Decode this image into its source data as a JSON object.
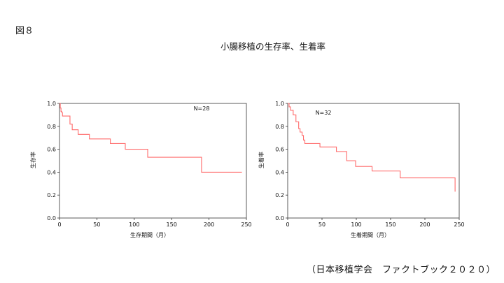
{
  "page": {
    "figure_label": "図８",
    "title": "小腸移植の生存率、生着率",
    "source": "（日本移植学会　ファクトブック２０２０）"
  },
  "chart_data": [
    {
      "type": "line",
      "step": true,
      "title": "",
      "xlabel": "生存期間（月）",
      "ylabel": "生存率",
      "annotation": "N=28",
      "xlim": [
        0,
        250
      ],
      "ylim": [
        0,
        1.0
      ],
      "xticks": [
        0,
        50,
        100,
        150,
        200,
        250
      ],
      "yticks": [
        0,
        0.2,
        0.4,
        0.6,
        0.8,
        1.0
      ],
      "ytick_labels": [
        "0.0",
        "0.2",
        "0.4",
        "0.6",
        "0.8",
        "1.0"
      ],
      "grid": false,
      "color": "#ff6b6b",
      "series": [
        {
          "x": [
            0,
            1,
            2,
            3,
            4,
            14,
            17,
            25,
            40,
            68,
            88,
            118,
            190,
            244
          ],
          "y": [
            1.0,
            0.96,
            0.93,
            0.92,
            0.89,
            0.82,
            0.77,
            0.73,
            0.69,
            0.65,
            0.6,
            0.53,
            0.4,
            0.4
          ]
        }
      ]
    },
    {
      "type": "line",
      "step": true,
      "title": "",
      "xlabel": "生着期間（月）",
      "ylabel": "生着率",
      "annotation": "N=32",
      "xlim": [
        0,
        250
      ],
      "ylim": [
        0,
        1.0
      ],
      "xticks": [
        0,
        50,
        100,
        150,
        200,
        250
      ],
      "yticks": [
        0,
        0.2,
        0.4,
        0.6,
        0.8,
        1.0
      ],
      "ytick_labels": [
        "0.0",
        "0.2",
        "0.4",
        "0.6",
        "0.8",
        "1.0"
      ],
      "grid": false,
      "color": "#ff6b6b",
      "series": [
        {
          "x": [
            0,
            2,
            4,
            8,
            12,
            16,
            18,
            21,
            23,
            25,
            47,
            71,
            86,
            99,
            123,
            164,
            244
          ],
          "y": [
            1.0,
            0.97,
            0.94,
            0.9,
            0.84,
            0.78,
            0.75,
            0.72,
            0.68,
            0.65,
            0.62,
            0.58,
            0.5,
            0.45,
            0.41,
            0.35,
            0.23
          ]
        }
      ]
    }
  ]
}
